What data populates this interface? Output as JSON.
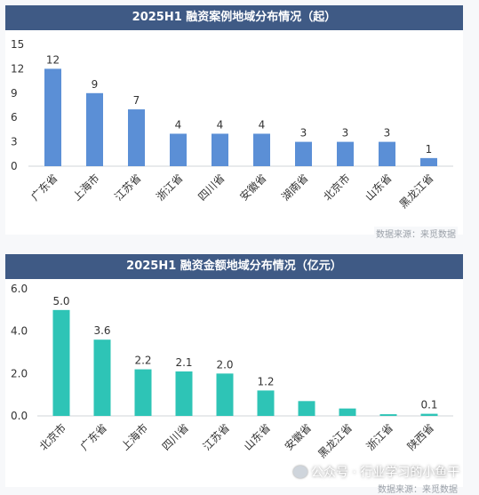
{
  "source_label": "数据来源：来觅数据",
  "watermark": {
    "text": "公众号 · 行业学习的小鱼干",
    "icon": "wechat-icon"
  },
  "chart_data": [
    {
      "type": "bar",
      "title": "2025H1 融资案例地域分布情况（起）",
      "categories": [
        "广东省",
        "上海市",
        "江苏省",
        "浙江省",
        "四川省",
        "安徽省",
        "湖南省",
        "北京市",
        "山东省",
        "黑龙江省"
      ],
      "values": [
        12,
        9,
        7,
        4,
        4,
        4,
        3,
        3,
        3,
        1
      ],
      "value_labels": [
        "12",
        "9",
        "7",
        "4",
        "4",
        "4",
        "3",
        "3",
        "3",
        "1"
      ],
      "ylim": [
        0,
        15
      ],
      "yticks": [
        "0",
        "3",
        "6",
        "9",
        "12",
        "15"
      ],
      "grid": false,
      "color": "#5b8fd6"
    },
    {
      "type": "bar",
      "title": "2025H1 融资金额地域分布情况（亿元）",
      "categories": [
        "北京市",
        "广东省",
        "上海市",
        "四川省",
        "江苏省",
        "山东省",
        "安徽省",
        "黑龙江省",
        "浙江省",
        "陕西省"
      ],
      "values": [
        5.0,
        3.6,
        2.2,
        2.1,
        2.0,
        1.2,
        0.7,
        0.35,
        0.08,
        0.1
      ],
      "value_labels": [
        "5.0",
        "3.6",
        "2.2",
        "2.1",
        "2.0",
        "1.2",
        "",
        "",
        "",
        "0.1"
      ],
      "ylim": [
        0,
        6
      ],
      "yticks": [
        "0.0",
        "2.0",
        "4.0",
        "6.0"
      ],
      "grid": false,
      "color": "#2ec4b6"
    }
  ]
}
